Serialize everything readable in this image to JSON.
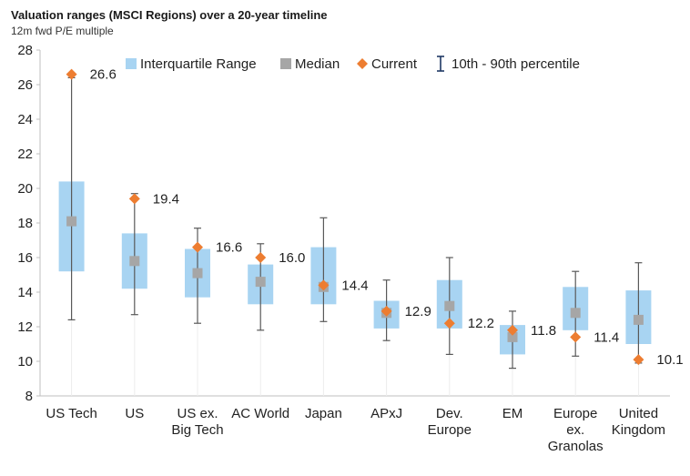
{
  "chart_data": {
    "type": "box",
    "title": "Valuation ranges (MSCI Regions) over a 20-year timeline",
    "ylabel": "12m fwd P/E multiple",
    "ylim": [
      8,
      28
    ],
    "yticks": [
      "8",
      "10",
      "12",
      "14",
      "16",
      "18",
      "20",
      "22",
      "24",
      "26",
      "28"
    ],
    "legend": {
      "position": "top",
      "iqr": "Interquartile Range",
      "median": "Median",
      "current": "Current",
      "whisker": "10th - 90th percentile"
    },
    "categories": [
      {
        "lines": [
          "US Tech"
        ],
        "p10": 12.4,
        "q1": 15.2,
        "median": 18.1,
        "q3": 20.4,
        "p90": 26.4,
        "current": 26.6,
        "current_label": "26.6"
      },
      {
        "lines": [
          "US"
        ],
        "p10": 12.7,
        "q1": 14.2,
        "median": 15.8,
        "q3": 17.4,
        "p90": 19.7,
        "current": 19.4,
        "current_label": "19.4"
      },
      {
        "lines": [
          "US ex.",
          "Big Tech"
        ],
        "p10": 12.2,
        "q1": 13.7,
        "median": 15.1,
        "q3": 16.5,
        "p90": 17.7,
        "current": 16.6,
        "current_label": "16.6"
      },
      {
        "lines": [
          "AC World"
        ],
        "p10": 11.8,
        "q1": 13.3,
        "median": 14.6,
        "q3": 15.6,
        "p90": 16.8,
        "current": 16.0,
        "current_label": "16.0"
      },
      {
        "lines": [
          "Japan"
        ],
        "p10": 12.3,
        "q1": 13.3,
        "median": 14.3,
        "q3": 16.6,
        "p90": 18.3,
        "current": 14.4,
        "current_label": "14.4"
      },
      {
        "lines": [
          "APxJ"
        ],
        "p10": 11.2,
        "q1": 11.9,
        "median": 12.8,
        "q3": 13.5,
        "p90": 14.7,
        "current": 12.9,
        "current_label": "12.9"
      },
      {
        "lines": [
          "Dev.",
          "Europe"
        ],
        "p10": 10.4,
        "q1": 11.9,
        "median": 13.2,
        "q3": 14.7,
        "p90": 16.0,
        "current": 12.2,
        "current_label": "12.2"
      },
      {
        "lines": [
          "EM"
        ],
        "p10": 9.6,
        "q1": 10.4,
        "median": 11.4,
        "q3": 12.1,
        "p90": 12.9,
        "current": 11.8,
        "current_label": "11.8"
      },
      {
        "lines": [
          "Europe",
          "ex.",
          "Granolas"
        ],
        "p10": 10.3,
        "q1": 11.8,
        "median": 12.8,
        "q3": 14.3,
        "p90": 15.2,
        "current": 11.4,
        "current_label": "11.4"
      },
      {
        "lines": [
          "United",
          "Kingdom"
        ],
        "p10": 9.9,
        "q1": 11.0,
        "median": 12.4,
        "q3": 14.1,
        "p90": 15.7,
        "current": 10.1,
        "current_label": "10.1"
      }
    ],
    "colors": {
      "iqr": "#a8d4f2",
      "median": "#a6a6a6",
      "current": "#ed7d31",
      "whisker": "#595959",
      "axis": "#bfbfbf",
      "legend_whisker": "#1f3864"
    }
  }
}
